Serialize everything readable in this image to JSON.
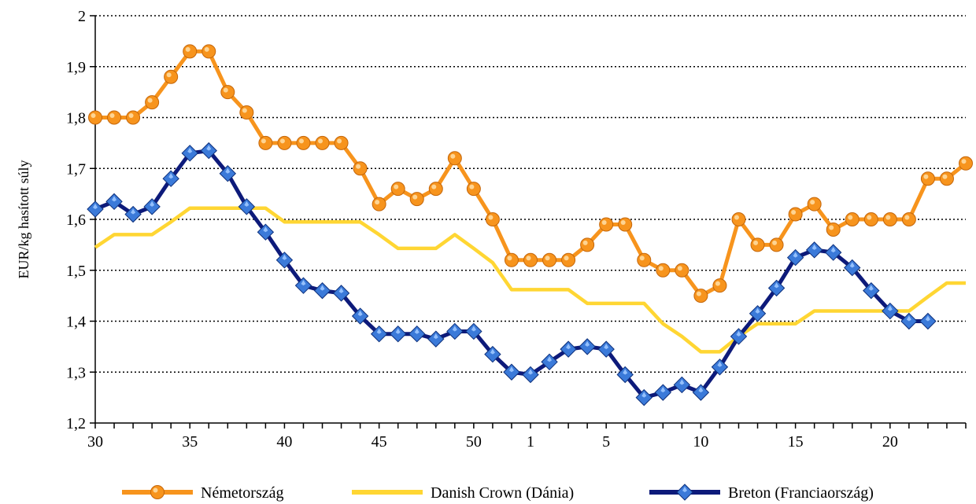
{
  "chart_data": {
    "type": "line",
    "ylabel": "EUR/kg hasított súly",
    "xlabel": "",
    "ylim": [
      1.2,
      2.0
    ],
    "yticks": [
      "1,2",
      "1,3",
      "1,4",
      "1,5",
      "1,6",
      "1,7",
      "1,8",
      "1,9",
      "2"
    ],
    "ytick_values": [
      1.2,
      1.3,
      1.4,
      1.5,
      1.6,
      1.7,
      1.8,
      1.9,
      2.0
    ],
    "x_categories": [
      "30",
      "31",
      "32",
      "33",
      "34",
      "35",
      "36",
      "37",
      "38",
      "39",
      "40",
      "41",
      "42",
      "43",
      "44",
      "45",
      "46",
      "47",
      "48",
      "49",
      "50",
      "51",
      "52",
      "1",
      "2",
      "3",
      "4",
      "5",
      "6",
      "7",
      "8",
      "9",
      "10",
      "11",
      "12",
      "13",
      "14",
      "15",
      "16",
      "17",
      "18",
      "19",
      "20",
      "21",
      "22",
      "23",
      "24"
    ],
    "xticks_labeled": [
      "30",
      "35",
      "40",
      "45",
      "50",
      "1",
      "5",
      "10",
      "15",
      "20"
    ],
    "grid": "horizontal dotted",
    "legend_position": "bottom",
    "series": [
      {
        "name": "Németország",
        "color": "#f7941d",
        "marker": "circle",
        "values": [
          1.8,
          1.8,
          1.8,
          1.83,
          1.88,
          1.93,
          1.93,
          1.85,
          1.81,
          1.75,
          1.75,
          1.75,
          1.75,
          1.75,
          1.7,
          1.63,
          1.66,
          1.64,
          1.66,
          1.72,
          1.66,
          1.6,
          1.52,
          1.52,
          1.52,
          1.52,
          1.55,
          1.59,
          1.59,
          1.52,
          1.5,
          1.5,
          1.45,
          1.47,
          1.6,
          1.55,
          1.55,
          1.61,
          1.63,
          1.58,
          1.6,
          1.6,
          1.6,
          1.6,
          1.68,
          1.68,
          1.71
        ]
      },
      {
        "name": "Danish Crown (Dánia)",
        "color": "#ffd633",
        "marker": "none",
        "values": [
          1.545,
          1.57,
          1.57,
          1.57,
          1.595,
          1.622,
          1.622,
          1.622,
          1.622,
          1.622,
          1.595,
          1.595,
          1.595,
          1.595,
          1.595,
          1.57,
          1.543,
          1.543,
          1.543,
          1.57,
          1.543,
          1.515,
          1.462,
          1.462,
          1.462,
          1.462,
          1.435,
          1.435,
          1.435,
          1.435,
          1.395,
          1.37,
          1.34,
          1.34,
          1.37,
          1.395,
          1.395,
          1.395,
          1.42,
          1.42,
          1.42,
          1.42,
          1.42,
          1.42,
          1.448,
          1.475,
          1.475
        ]
      },
      {
        "name": "Breton (Franciaország)",
        "color": "#0d1a7a",
        "marker": "diamond",
        "values": [
          1.62,
          1.635,
          1.61,
          1.625,
          1.68,
          1.73,
          1.735,
          1.69,
          1.625,
          1.575,
          1.52,
          1.47,
          1.46,
          1.455,
          1.41,
          1.375,
          1.375,
          1.375,
          1.365,
          1.38,
          1.38,
          1.335,
          1.3,
          1.295,
          1.32,
          1.345,
          1.35,
          1.345,
          1.295,
          1.25,
          1.26,
          1.275,
          1.26,
          1.31,
          1.37,
          1.415,
          1.465,
          1.525,
          1.54,
          1.535,
          1.505,
          1.46,
          1.42,
          1.4,
          1.4,
          null,
          null
        ]
      }
    ]
  }
}
